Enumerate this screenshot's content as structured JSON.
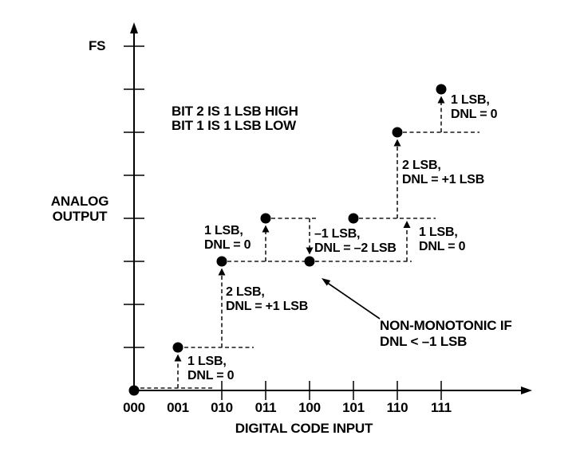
{
  "chart_data": {
    "type": "scatter",
    "title": "",
    "xlabel": "DIGITAL CODE INPUT",
    "ylabel": "ANALOG OUTPUT",
    "ylabel_lines": [
      "ANALOG",
      "OUTPUT"
    ],
    "full_scale_label": "FS",
    "x_categories": [
      "000",
      "001",
      "010",
      "011",
      "100",
      "101",
      "110",
      "111"
    ],
    "output_lsb": [
      0,
      1,
      3,
      4,
      3,
      4,
      6,
      7
    ],
    "ylim_lsb": [
      0,
      8
    ],
    "y_tick_levels_lsb": [
      1,
      2,
      3,
      4,
      5,
      6,
      7,
      8
    ],
    "grid": false,
    "steps": [
      {
        "from_code": "000",
        "to_code": "001",
        "step_size": "1 LSB,",
        "dnl": "DNL = 0"
      },
      {
        "from_code": "001",
        "to_code": "010",
        "step_size": "2 LSB,",
        "dnl": "DNL = +1 LSB"
      },
      {
        "from_code": "010",
        "to_code": "011",
        "step_size": "1 LSB,",
        "dnl": "DNL = 0"
      },
      {
        "from_code": "011",
        "to_code": "100",
        "step_size": "–1 LSB,",
        "dnl": "DNL = –2 LSB"
      },
      {
        "from_code": "100",
        "to_code": "101",
        "step_size": "1 LSB,",
        "dnl": "DNL = 0"
      },
      {
        "from_code": "101",
        "to_code": "110",
        "step_size": "2 LSB,",
        "dnl": "DNL = +1 LSB"
      },
      {
        "from_code": "110",
        "to_code": "111",
        "step_size": "1 LSB,",
        "dnl": "DNL = 0"
      }
    ],
    "annotations": {
      "error_note": [
        "BIT 2 IS 1 LSB HIGH",
        "BIT 1 IS 1 LSB LOW"
      ],
      "non_monotonic": [
        "NON-MONOTONIC IF",
        "DNL < –1 LSB"
      ]
    }
  },
  "colors": {
    "ink": "#000000",
    "background": "#ffffff"
  }
}
